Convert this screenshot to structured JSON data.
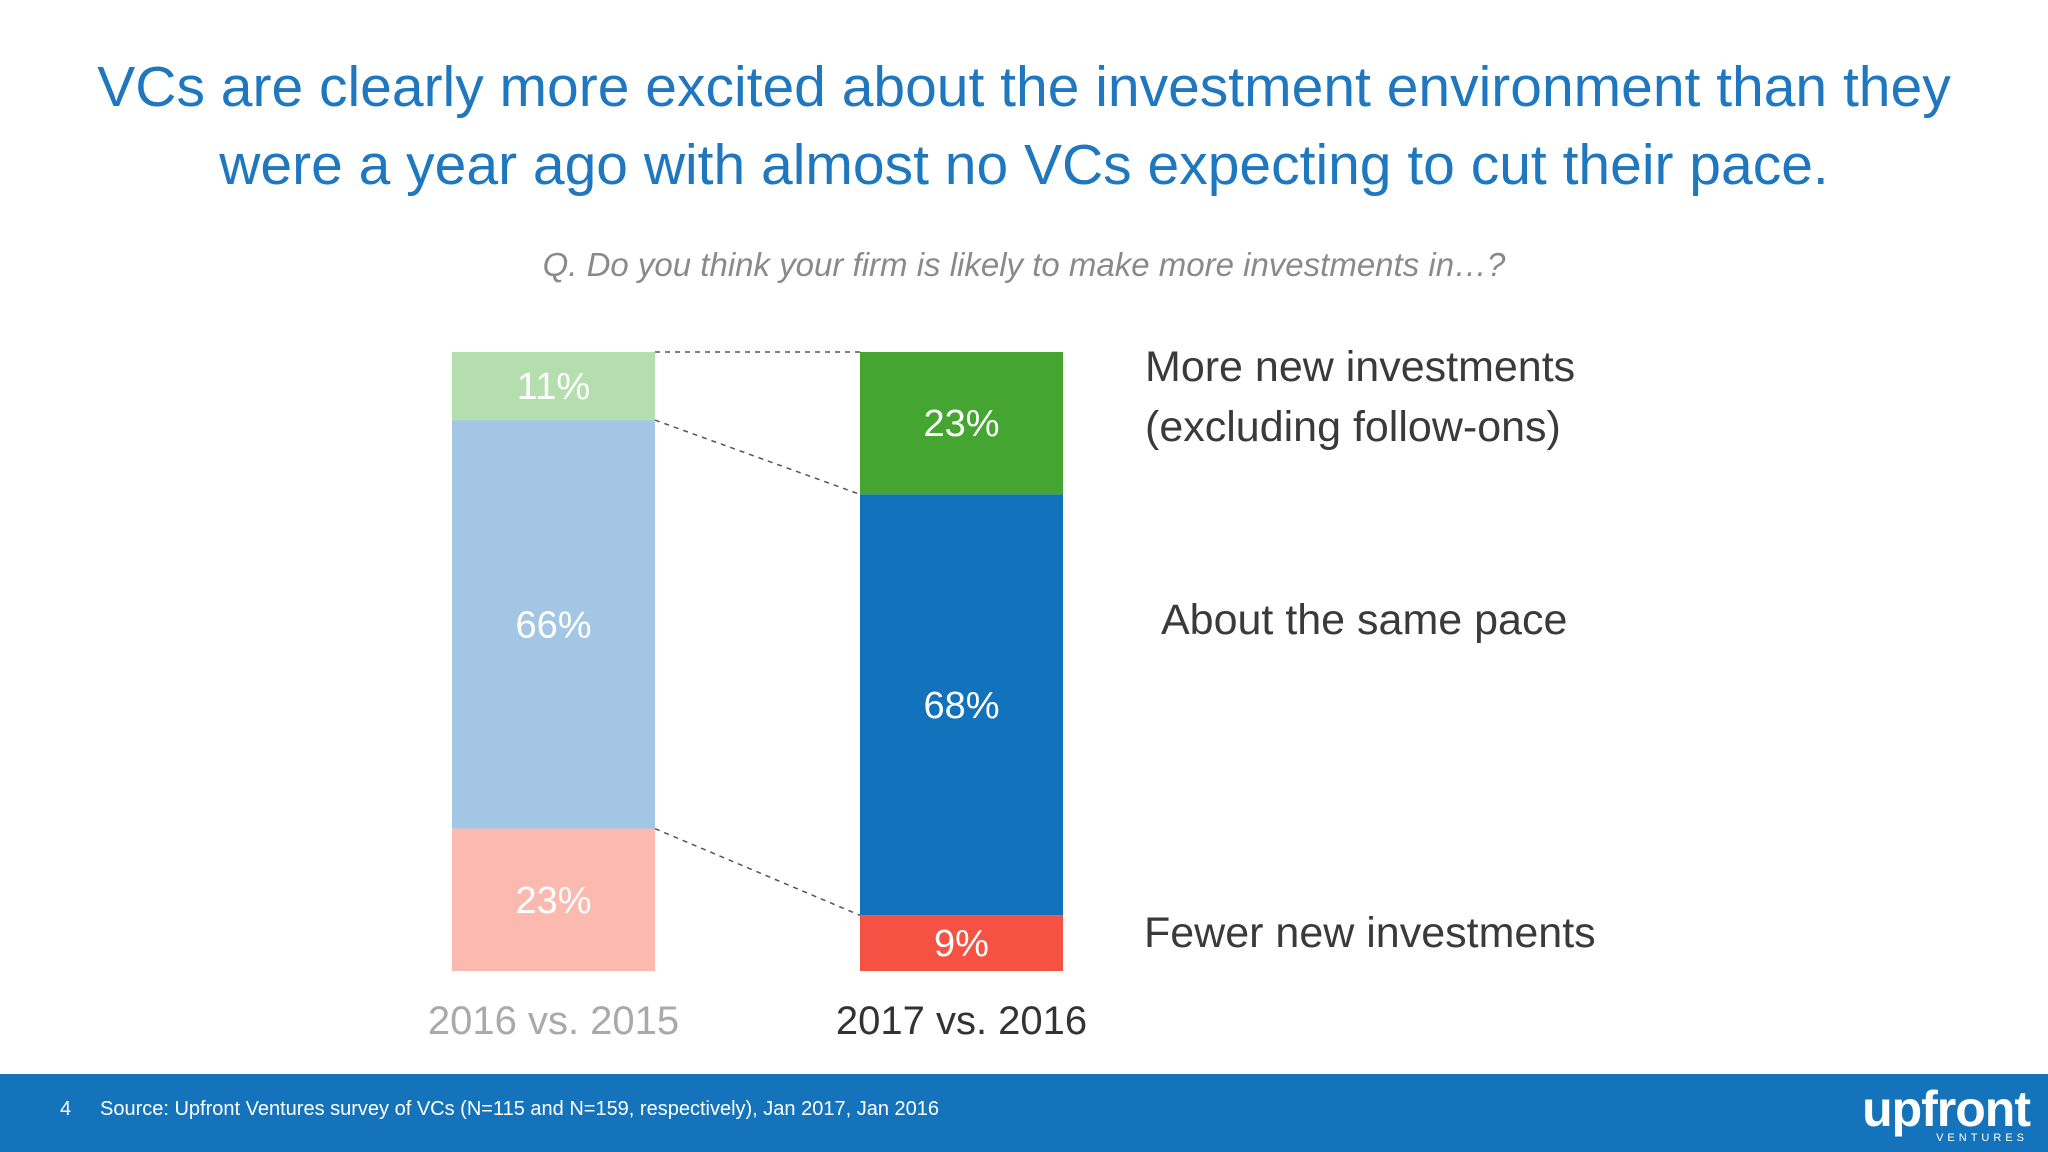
{
  "title": "VCs are clearly more excited about the investment environment than they were a year ago with almost no VCs expecting to cut their pace.",
  "subtitle": "Q. Do you think your firm is likely to make more investments in…?",
  "legend": {
    "more": "More new investments\n(excluding follow-ons)",
    "same": "About the same pace",
    "fewer": "Fewer new investments"
  },
  "footer": {
    "page": "4",
    "source": "Source: Upfront Ventures survey of VCs (N=115 and N=159, respectively), Jan 2017, Jan 2016"
  },
  "logo": {
    "name": "upfront",
    "sub": "VENTURES"
  },
  "chart_data": {
    "type": "bar",
    "stacked": true,
    "normalized": true,
    "categories": [
      "2016 vs. 2015",
      "2017 vs. 2016"
    ],
    "series": [
      {
        "name": "Fewer new investments",
        "values": [
          23,
          9
        ],
        "labels": [
          "23%",
          "9%"
        ],
        "colors": [
          "#fbb9b0",
          "#f55244"
        ]
      },
      {
        "name": "About the same pace",
        "values": [
          66,
          68
        ],
        "labels": [
          "66%",
          "68%"
        ],
        "colors": [
          "#a3c6e4",
          "#1372bc"
        ]
      },
      {
        "name": "More new investments (excluding follow-ons)",
        "values": [
          11,
          23
        ],
        "labels": [
          "11%",
          "23%"
        ],
        "colors": [
          "#b5deae",
          "#44a630"
        ]
      }
    ],
    "category_label_colors": [
      "#a9a9a9",
      "#333333"
    ],
    "value_label_color": "#ffffff",
    "connector_color": "#555555",
    "legend_position": "right"
  }
}
